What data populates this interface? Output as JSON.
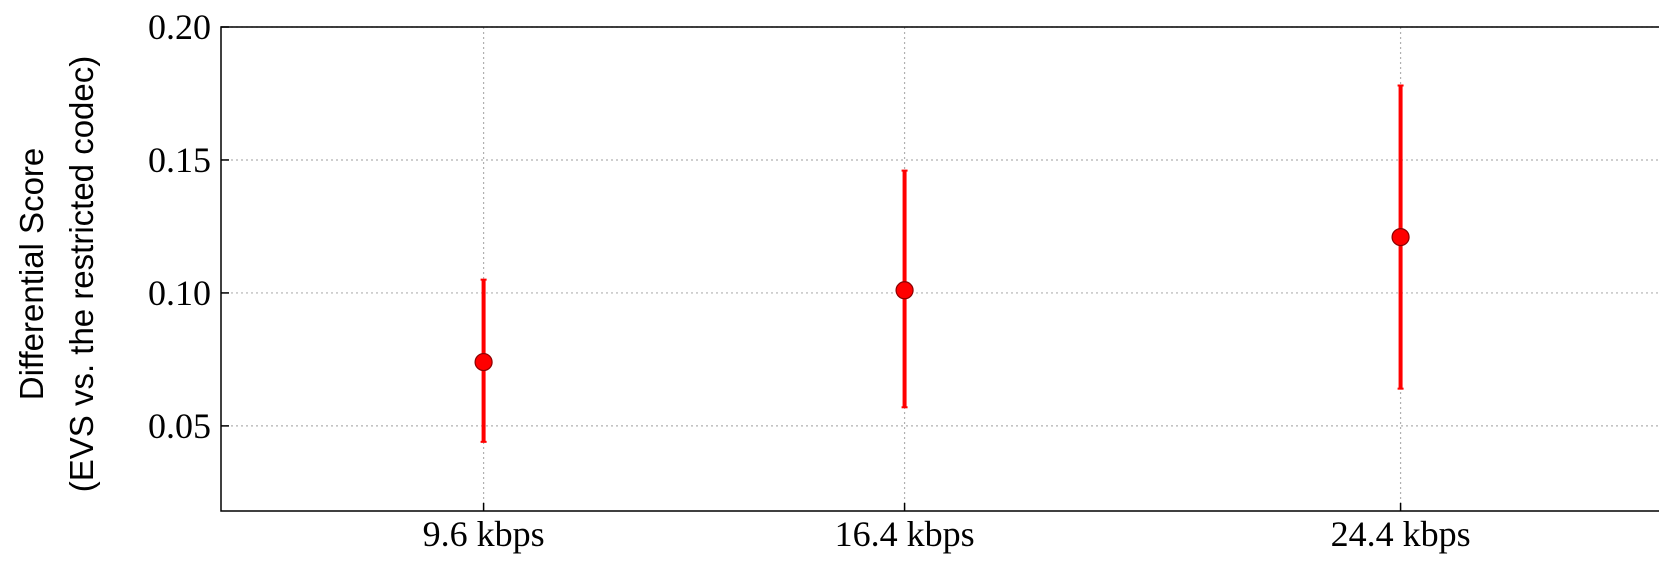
{
  "chart_data": {
    "type": "scatter",
    "title": "",
    "xlabel": "",
    "ylabel_lines": [
      "Differential Score",
      "(EVS vs. the restricted codec)"
    ],
    "categories": [
      "9.6 kbps",
      "16.4 kbps",
      "24.4 kbps"
    ],
    "x_positions": [
      0.63,
      1.64,
      2.83
    ],
    "xlim": [
      0,
      3.45
    ],
    "ylim": [
      0.018,
      0.2
    ],
    "yticks": [
      0.05,
      0.1,
      0.15,
      0.2
    ],
    "ytick_labels": [
      "0.05",
      "0.10",
      "0.15",
      "0.20"
    ],
    "grid": true,
    "series": [
      {
        "values": [
          0.074,
          0.101,
          0.121
        ],
        "lower": [
          0.044,
          0.057,
          0.064
        ],
        "upper": [
          0.105,
          0.146,
          0.178
        ],
        "color": "#ff0000"
      }
    ]
  }
}
